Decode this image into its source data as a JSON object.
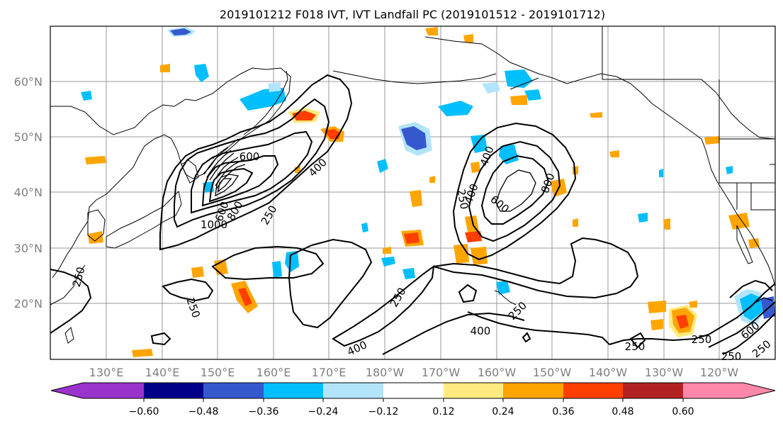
{
  "title": "2019101212 F018 IVT, IVT Landfall PC (2019101512 - 2019101712)",
  "map": {
    "lat_labels": [
      "60°N",
      "50°N",
      "40°N",
      "30°N",
      "20°N"
    ],
    "lon_labels": [
      "130°E",
      "140°E",
      "150°E",
      "160°E",
      "170°E",
      "180°W",
      "170°W",
      "160°W",
      "150°W",
      "140°W",
      "130°W",
      "120°W"
    ],
    "contour_labels": [
      "600",
      "400",
      "250",
      "1000",
      "800",
      "600",
      "250",
      "250",
      "250",
      "400",
      "600",
      "400",
      "800",
      "250",
      "250",
      "250",
      "400",
      "250",
      "600",
      "250",
      "400",
      "250"
    ],
    "anomaly_colors": {
      "negative_strong": "#3658cf",
      "negative": "#00bfff",
      "negative_weak": "#b2e5fb",
      "positive_weak": "#ffea7f",
      "positive": "#ffa500",
      "positive_strong": "#ff3f00"
    }
  },
  "colorbar": {
    "colors": [
      "#9933cc",
      "#000088",
      "#3658cf",
      "#00bfff",
      "#b2e5fb",
      "#ffffff",
      "#ffea7f",
      "#ffa500",
      "#ff3f00",
      "#b22222",
      "#ff88aa"
    ],
    "tick_labels": [
      "−0.60",
      "−0.48",
      "−0.36",
      "−0.24",
      "−0.12",
      "0.12",
      "0.24",
      "0.36",
      "0.48",
      "0.60"
    ]
  }
}
